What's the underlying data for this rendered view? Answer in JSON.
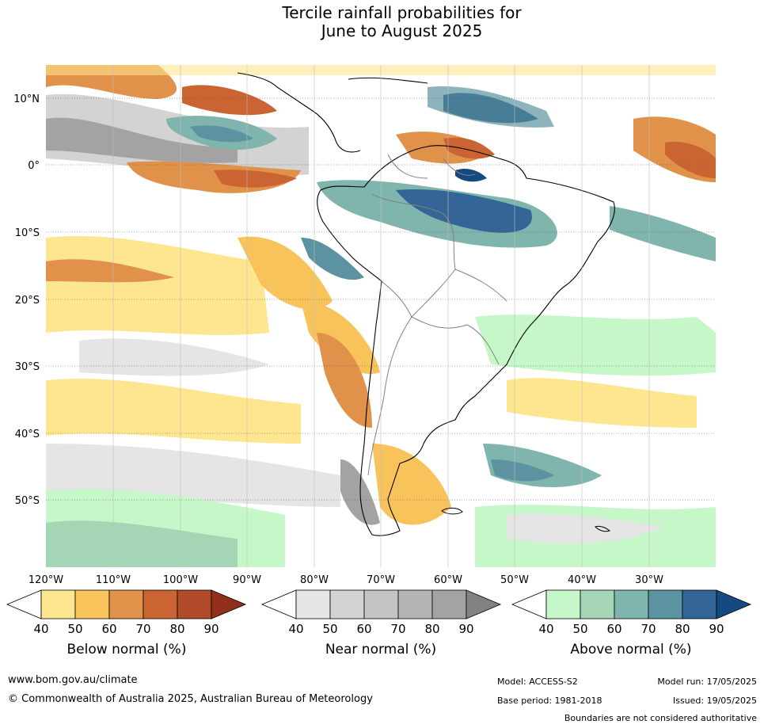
{
  "title": {
    "line1": "Tercile rainfall probabilities for",
    "line2": "June to August 2025"
  },
  "map": {
    "region": "South America",
    "lat_labels": [
      "10°N",
      "0°",
      "10°S",
      "20°S",
      "30°S",
      "40°S",
      "50°S"
    ],
    "lon_labels": [
      "120°W",
      "110°W",
      "100°W",
      "90°W",
      "80°W",
      "70°W",
      "60°W",
      "50°W",
      "40°W",
      "30°W"
    ]
  },
  "legend": {
    "below": {
      "title": "Below normal (%)",
      "ticks": [
        "40",
        "50",
        "60",
        "70",
        "80",
        "90"
      ],
      "colors": [
        "#ffffff",
        "#fde68f",
        "#f9c35c",
        "#e0914a",
        "#ca6432",
        "#b04a28",
        "#92301b"
      ]
    },
    "near": {
      "title": "Near normal (%)",
      "ticks": [
        "40",
        "50",
        "60",
        "70",
        "80",
        "90"
      ],
      "colors": [
        "#ffffff",
        "#e5e5e5",
        "#d3d3d3",
        "#c4c4c4",
        "#b4b4b4",
        "#a3a3a3",
        "#828282"
      ]
    },
    "above": {
      "title": "Above normal (%)",
      "ticks": [
        "40",
        "50",
        "60",
        "70",
        "80",
        "90"
      ],
      "colors": [
        "#ffffff",
        "#c6f7c9",
        "#a4d6b6",
        "#7fb5ac",
        "#5c93a0",
        "#336597",
        "#144a80"
      ]
    }
  },
  "footer": {
    "website": "www.bom.gov.au/climate",
    "copyright": "© Commonwealth of Australia 2025, Australian Bureau of Meteorology",
    "model": "Model: ACCESS-S2",
    "base_period": "Base period: 1981-2018",
    "model_run": "Model run: 17/05/2025",
    "issued": "Issued: 19/05/2025",
    "disclaimer": "Boundaries are not considered authoritative"
  }
}
